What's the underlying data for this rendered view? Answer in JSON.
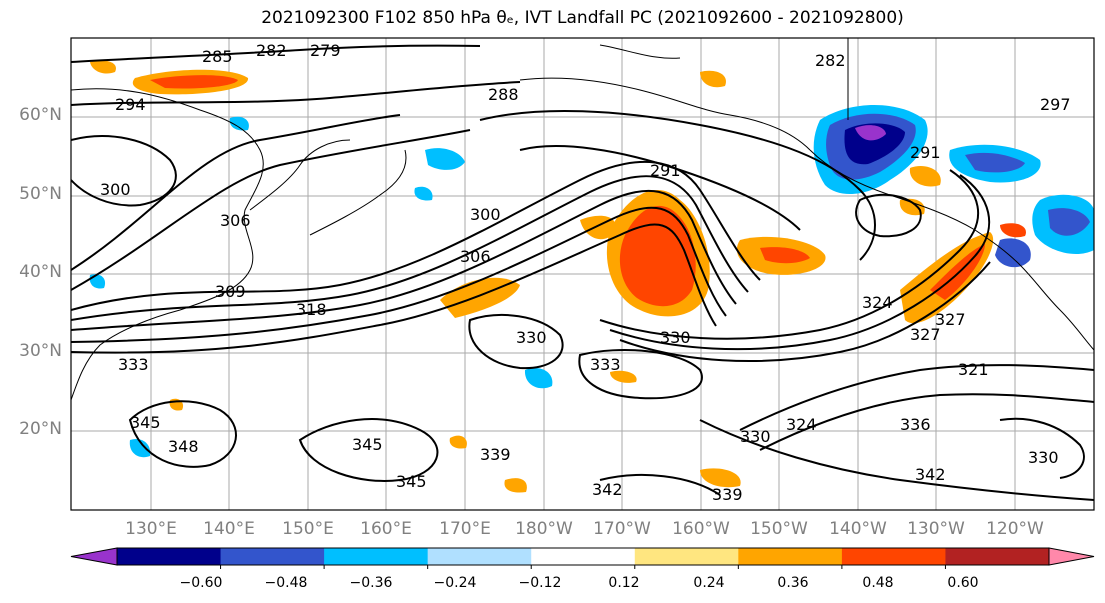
{
  "title": "2021092300 F102 850 hPa θₑ, IVT Landfall PC (2021092600 - 2021092800)",
  "lat_labels": [
    "60°N",
    "50°N",
    "40°N",
    "30°N",
    "20°N"
  ],
  "lon_labels": [
    "130°E",
    "140°E",
    "150°E",
    "160°E",
    "170°E",
    "180°W",
    "170°W",
    "160°W",
    "150°W",
    "140°W",
    "130°W",
    "120°W"
  ],
  "contour_labels": [
    "285",
    "282",
    "279",
    "282",
    "291",
    "294",
    "288",
    "297",
    "300",
    "306",
    "300",
    "309",
    "306",
    "318",
    "291",
    "324",
    "330",
    "330",
    "333",
    "327",
    "321",
    "333",
    "345",
    "348",
    "345",
    "339",
    "330",
    "324",
    "336",
    "342",
    "339",
    "342",
    "330",
    "345",
    "327"
  ],
  "colorbar": {
    "colors": [
      "#9933cc",
      "#00008b",
      "#3355cc",
      "#00bfff",
      "#b0e0ff",
      "#ffffff",
      "#ffe680",
      "#ffa500",
      "#ff4500",
      "#b22222",
      "#ff88aa"
    ],
    "ticks": [
      "−0.60",
      "−0.48",
      "−0.36",
      "−0.24",
      "−0.12",
      "0.12",
      "0.24",
      "0.36",
      "0.48",
      "0.60"
    ]
  }
}
